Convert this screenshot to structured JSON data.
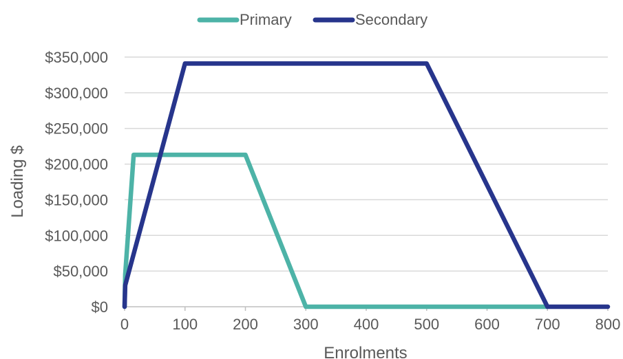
{
  "chart_data": {
    "type": "line",
    "xlabel": "Enrolments",
    "ylabel": "Loading $",
    "xlim": [
      0,
      800
    ],
    "ylim": [
      0,
      350000
    ],
    "xticks": [
      0,
      100,
      200,
      300,
      400,
      500,
      600,
      700,
      800
    ],
    "yticks": [
      0,
      50000,
      100000,
      150000,
      200000,
      250000,
      300000,
      350000
    ],
    "xtick_labels": [
      "0",
      "100",
      "200",
      "300",
      "400",
      "500",
      "600",
      "700",
      "800"
    ],
    "ytick_labels": [
      "$0",
      "$50,000",
      "$100,000",
      "$150,000",
      "$200,000",
      "$250,000",
      "$300,000",
      "$350,000"
    ],
    "grid": "horizontal",
    "legend_position": "top-center",
    "series": [
      {
        "name": "Primary",
        "color": "#4db3a7",
        "points": [
          [
            0,
            0
          ],
          [
            1,
            45000
          ],
          [
            15,
            213000
          ],
          [
            200,
            213000
          ],
          [
            300,
            0
          ],
          [
            700,
            0
          ]
        ]
      },
      {
        "name": "Secondary",
        "color": "#27358c",
        "points": [
          [
            0,
            0
          ],
          [
            1,
            30000
          ],
          [
            100,
            341000
          ],
          [
            500,
            341000
          ],
          [
            700,
            0
          ],
          [
            800,
            0
          ]
        ]
      }
    ]
  }
}
